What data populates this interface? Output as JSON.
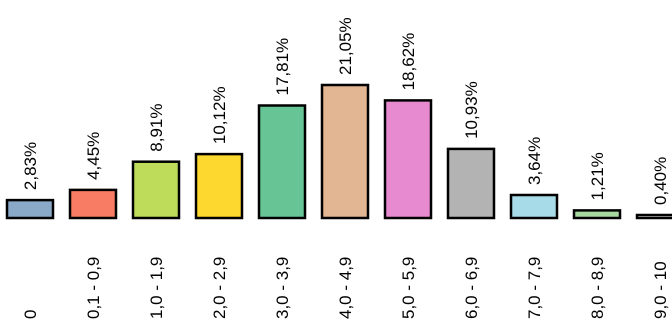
{
  "chart_data": {
    "type": "bar",
    "categories": [
      "0",
      "0,1 - 0,9",
      "1,0 - 1,9",
      "2,0 - 2,9",
      "3,0 - 3,9",
      "4,0 - 4,9",
      "5,0 - 5,9",
      "6,0 - 6,9",
      "7,0 - 7,9",
      "8,0 - 8,9",
      "9,0 - 10"
    ],
    "values": [
      2.83,
      4.45,
      8.91,
      10.12,
      17.81,
      21.05,
      18.62,
      10.93,
      3.64,
      1.21,
      0.4
    ],
    "value_labels": [
      "2,83%",
      "4,45%",
      "8,91%",
      "10,12%",
      "17,81%",
      "21,05%",
      "18,62%",
      "10,93%",
      "3,64%",
      "1,21%",
      "0,40%"
    ],
    "colors": [
      "#8aa9c9",
      "#f87c64",
      "#bedc5a",
      "#fdd82e",
      "#66c495",
      "#e3b693",
      "#e78ad0",
      "#b3b3b3",
      "#a7dbe7",
      "#a8d9a0",
      "#ffffff"
    ],
    "title": "",
    "xlabel": "",
    "ylabel": "",
    "ylim": [
      0,
      21.05
    ],
    "grid": false,
    "legend": "none"
  }
}
